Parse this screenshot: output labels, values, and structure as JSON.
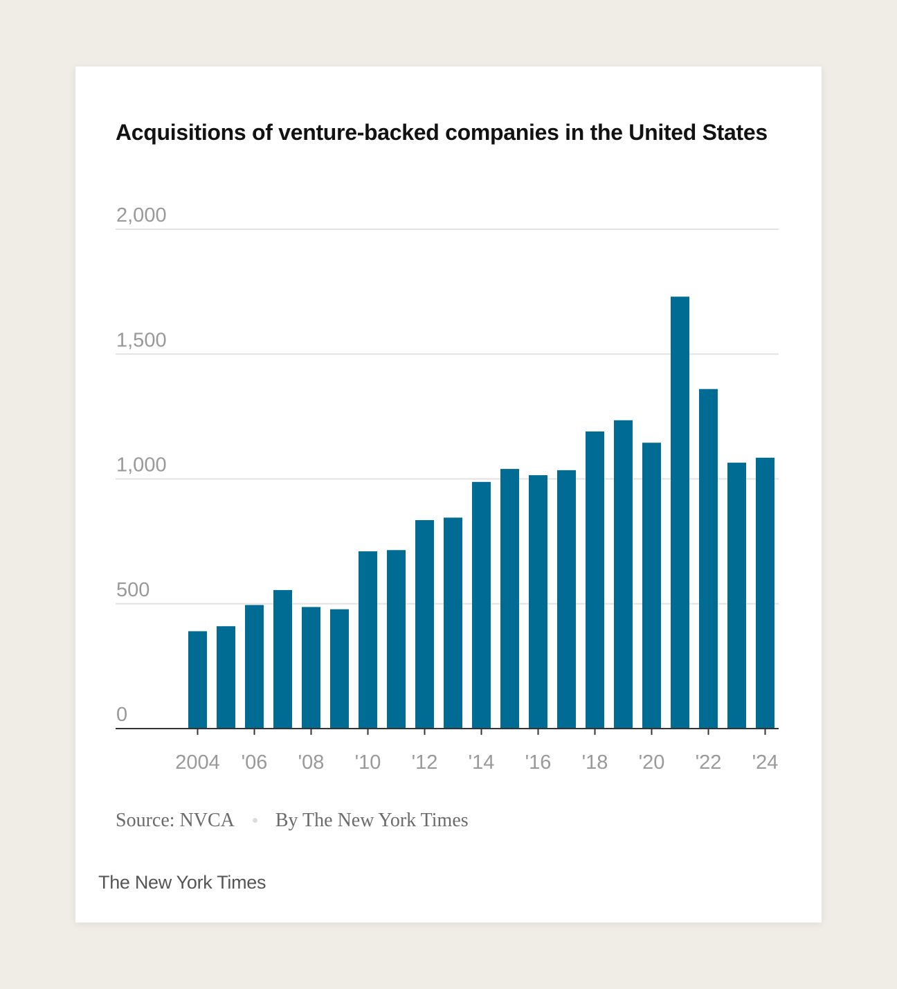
{
  "colors": {
    "background": "#efede6",
    "card": "#ffffff",
    "bar": "#006c93",
    "gridline": "#e2e2e2",
    "baseline": "#333333",
    "tick_label": "#999999"
  },
  "chart_data": {
    "type": "bar",
    "title": "Acquisitions of venture-backed companies in the United States",
    "xlabel": "",
    "ylabel": "",
    "ylim": [
      0,
      2000
    ],
    "yticks": [
      0,
      500,
      1000,
      1500,
      2000
    ],
    "ytick_labels": [
      "0",
      "500",
      "1,000",
      "1,500",
      "2,000"
    ],
    "categories": [
      "2004",
      "2005",
      "2006",
      "2007",
      "2008",
      "2009",
      "2010",
      "2011",
      "2012",
      "2013",
      "2014",
      "2015",
      "2016",
      "2017",
      "2018",
      "2019",
      "2020",
      "2021",
      "2022",
      "2023",
      "2024"
    ],
    "values": [
      390,
      410,
      495,
      555,
      487,
      478,
      710,
      715,
      835,
      845,
      988,
      1040,
      1015,
      1035,
      1190,
      1235,
      1145,
      1730,
      1360,
      1065,
      1085
    ],
    "xtick_labels": [
      "2004",
      "'06",
      "'08",
      "'10",
      "'12",
      "'14",
      "'16",
      "'18",
      "'20",
      "'22",
      "'24"
    ],
    "xtick_years": [
      "2004",
      "2006",
      "2008",
      "2010",
      "2012",
      "2014",
      "2016",
      "2018",
      "2020",
      "2022",
      "2024"
    ],
    "grid": true
  },
  "footer": {
    "source": "Source: NVCA",
    "credit": "By The New York Times",
    "brand": "The New York Times"
  }
}
